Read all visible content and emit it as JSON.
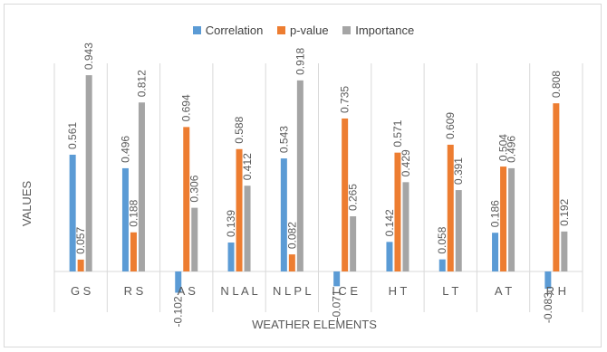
{
  "chart_data": {
    "type": "bar",
    "xlabel": "WEATHER ELEMENTS",
    "ylabel": "VALUES",
    "categories": [
      "G S",
      "R S",
      "A S",
      "N L A L",
      "N L P L",
      "I C E",
      "H T",
      "L T",
      "A T",
      "R H"
    ],
    "series": [
      {
        "name": "Correlation",
        "color": "#5B9BD5",
        "values": [
          0.561,
          0.496,
          -0.102,
          0.139,
          0.543,
          -0.071,
          0.142,
          0.058,
          0.186,
          -0.083
        ],
        "labels": [
          "0.561",
          "0.496",
          "-0.102",
          "0.139",
          "0.543",
          "-0.071",
          "0.142",
          "0.058",
          "0.186",
          "-0.083"
        ]
      },
      {
        "name": "p-value",
        "color": "#ED7D31",
        "values": [
          0.057,
          0.188,
          0.694,
          0.588,
          0.082,
          0.735,
          0.571,
          0.609,
          0.504,
          0.808
        ],
        "labels": [
          "0.057",
          "0.188",
          "0.694",
          "0.588",
          "0.082",
          "0.735",
          "0.571",
          "0.609",
          "0.504",
          "0.808"
        ]
      },
      {
        "name": "Importance",
        "color": "#A5A5A5",
        "values": [
          0.943,
          0.812,
          0.306,
          0.412,
          0.918,
          0.265,
          0.429,
          0.391,
          0.496,
          0.192
        ],
        "labels": [
          "0.943",
          "0.812",
          "0.306",
          "0.412",
          "0.918",
          "0.265",
          "0.429",
          "0.391",
          "0.496",
          "0.192"
        ]
      }
    ],
    "legend_position": "top",
    "gridlines": "vertical category separators"
  }
}
